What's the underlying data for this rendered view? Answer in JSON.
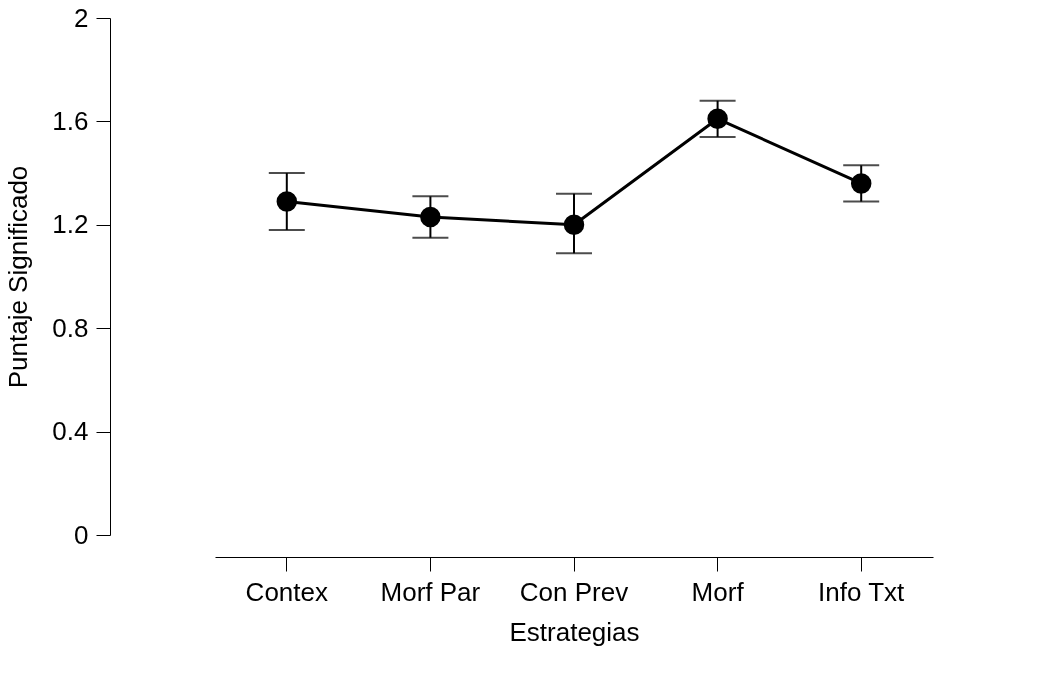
{
  "chart_data": {
    "type": "line",
    "xlabel": "Estrategias",
    "ylabel": "Puntaje Significado",
    "categories": [
      "Contex",
      "Morf Par",
      "Con Prev",
      "Morf",
      "Info Txt"
    ],
    "series": [
      {
        "color": "#000000",
        "values": [
          1.29,
          1.23,
          1.2,
          1.61,
          1.36
        ],
        "errors": [
          [
            1.18,
            1.4
          ],
          [
            1.15,
            1.31
          ],
          [
            1.09,
            1.32
          ],
          [
            1.54,
            1.68
          ],
          [
            1.29,
            1.43
          ]
        ]
      }
    ],
    "ylim": [
      0,
      2
    ],
    "yticks": [
      0,
      0.4,
      0.8,
      1.2,
      1.6,
      2
    ],
    "marker": "circle",
    "line_style": "solid",
    "grid": false
  }
}
